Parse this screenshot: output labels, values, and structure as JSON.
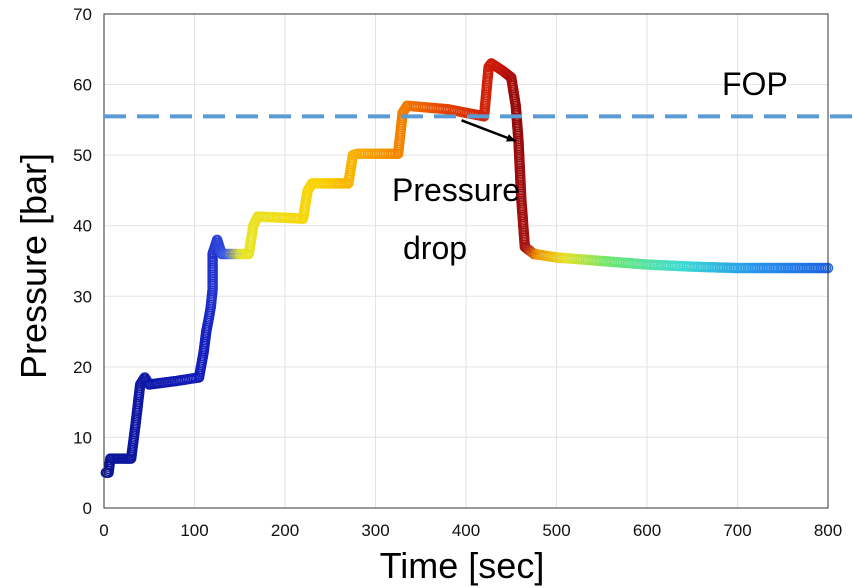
{
  "chart_data": {
    "type": "scatter",
    "title": "",
    "xlabel": "Time [sec]",
    "ylabel": "Pressure [bar]",
    "xlim": [
      0,
      800
    ],
    "ylim": [
      0,
      70
    ],
    "xticks": [
      0,
      100,
      200,
      300,
      400,
      500,
      600,
      700,
      800
    ],
    "yticks": [
      0,
      10,
      20,
      30,
      40,
      50,
      60,
      70
    ],
    "grid": true,
    "colormap": "jet (blue → red → blue-green over time)",
    "series": [
      {
        "marker": "open circle",
        "points": [
          [
            2,
            5
          ],
          [
            5,
            5
          ],
          [
            7,
            7
          ],
          [
            25,
            7
          ],
          [
            30,
            7
          ],
          [
            35,
            12
          ],
          [
            40,
            17.5
          ],
          [
            45,
            18.5
          ],
          [
            50,
            17.5
          ],
          [
            80,
            18
          ],
          [
            105,
            18.5
          ],
          [
            110,
            22
          ],
          [
            113,
            25
          ],
          [
            116,
            27
          ],
          [
            118,
            28.5
          ],
          [
            120,
            31
          ],
          [
            120,
            33
          ],
          [
            120,
            36
          ],
          [
            125,
            38
          ],
          [
            130,
            36
          ],
          [
            160,
            36
          ],
          [
            165,
            40
          ],
          [
            170,
            41.3
          ],
          [
            220,
            41
          ],
          [
            225,
            45
          ],
          [
            230,
            46
          ],
          [
            270,
            46
          ],
          [
            275,
            50
          ],
          [
            280,
            50.2
          ],
          [
            325,
            50.2
          ],
          [
            330,
            56
          ],
          [
            335,
            57
          ],
          [
            380,
            56.5
          ],
          [
            420,
            55.5
          ],
          [
            425,
            62.5
          ],
          [
            428,
            63
          ],
          [
            440,
            62
          ],
          [
            450,
            61
          ],
          [
            455,
            57
          ],
          [
            458,
            52
          ],
          [
            461,
            44
          ],
          [
            465,
            37
          ],
          [
            475,
            36
          ],
          [
            500,
            35.5
          ],
          [
            550,
            35
          ],
          [
            600,
            34.5
          ],
          [
            650,
            34.2
          ],
          [
            700,
            34
          ],
          [
            750,
            34
          ],
          [
            800,
            34
          ]
        ]
      }
    ],
    "reference_lines": [
      {
        "label": "FOP",
        "y": 55.5,
        "style": "dashed",
        "color": "#5b9bd5"
      }
    ],
    "annotations": [
      {
        "text_lines": [
          "Pressure",
          "drop"
        ],
        "arrow_from": [
          395,
          55.5
        ],
        "arrow_to": [
          455,
          52
        ]
      }
    ]
  }
}
